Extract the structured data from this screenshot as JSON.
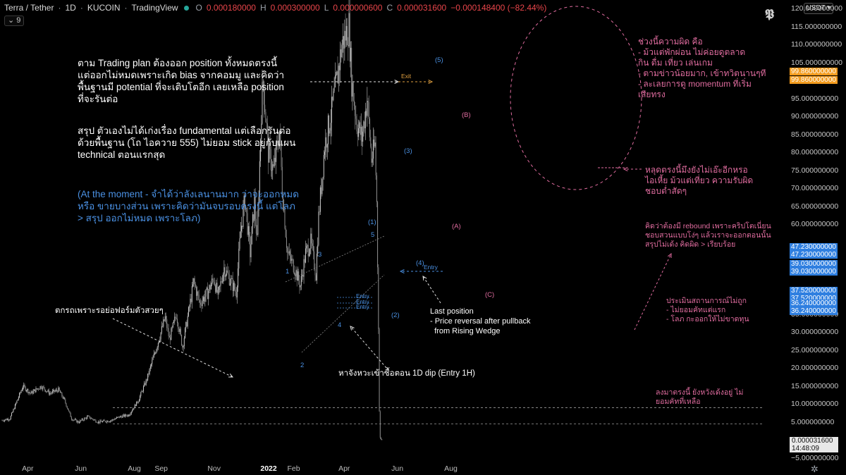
{
  "header": {
    "symbol": "Terra / Tether",
    "interval": "1D",
    "exchange": "KUCOIN",
    "source": "TradingView",
    "open_label": "O",
    "open": "0.000180000",
    "high_label": "H",
    "high": "0.000300000",
    "low_label": "L",
    "low": "0.000000600",
    "close_label": "C",
    "close": "0.000031600",
    "change": "−0.000148400 (−82.44%)",
    "indicator_count": "9"
  },
  "currency_button": "USDT",
  "brand_mark": "𝕻",
  "colors": {
    "background": "#000000",
    "candle": "#c7c7c7",
    "candle_down": "#8f8f8f",
    "pink_note": "#e06c9f",
    "blue_note": "#4a90e2",
    "exit": "#e0a040",
    "price_tag_blue": "#2f7fe0",
    "price_tag_orange": "#f39c1f"
  },
  "price_tags": [
    {
      "value": "99.860000000",
      "color": "orange"
    },
    {
      "value": "99.860000000",
      "color": "orange"
    },
    {
      "value": "47.230000000",
      "color": "blue"
    },
    {
      "value": "47.230000000",
      "color": "blue"
    },
    {
      "value": "39.030000000",
      "color": "blue"
    },
    {
      "value": "39.030000000",
      "color": "blue"
    },
    {
      "value": "37.520000000",
      "color": "blue"
    },
    {
      "value": "37.520000000",
      "color": "blue"
    },
    {
      "value": "36.240000000",
      "color": "blue"
    },
    {
      "value": "36.240000000",
      "color": "blue"
    }
  ],
  "last_price": {
    "value": "0.000031600",
    "countdown": "14:48:09"
  },
  "notes": {
    "plan": "ตาม Trading plan ต้องออก position ทั้งหมดตรงนี้\nแต่ออกไม่หมดเพราะเกิด bias จากคอมมู และคิดว่า\nพื้นฐานมี potential ที่จะเติบโตอีก เลยเหลือ position\nที่จะรันต่อ",
    "summary": "สรุป ตัวเองไม่ได้เก่งเรื่อง fundamental แต่เลือกรันต่อ\nด้วยพื้นฐาน (โถ ไอควาย 555) ไม่ยอม stick อยู่กับแผน\ntechnical ตอนแรกสุด",
    "moment": "(At the moment - จำได้ว่าลังเลนานมาก ว่าจะออกหมด\nหรือ ขายบางส่วน เพราะคิดว่ามันจบรอบตรงนี้ แต่โลภ\n> สรุป ออกไม่หมด เพราะโลภ)",
    "fail": "ตกรถเพราะรอย่อฟอร์มตัวสวยๆ",
    "dip": "หาจังหวะเข้าซื้อตอน 1D dip (Entry 1H)",
    "last_position": "Last position\n- Price reversal after pullback\n  from Rising Wedge",
    "mistake": "ช่วงนี้ความผิด คือ\n- ม้วแต่พักผ่อน ไม่ค่อยดูตลาด\nกิน ดื่ม เที่ยว เล่นเกม\n- ตามข่าวน้อยมาก, เข้าทวิตนานๆที\n- ละเลยการดู momentum ที่เริ่ม\nเสียทรง",
    "drop": "หลุดตรงนี้มึงยังไม่เอ๊ะอีกหรอ\nไอเหี้ย ม้วแต่เที่ยว ความรับผิด\nชอบต่ำสัดๆ",
    "rebound": "คิดว่าต้องมี rebound เพราะคริปโตเนี่ยน\nชอบสวนแบบโง่ๆ แล้วเราจะออกตอนนั้น\nสรุปไม่เด้ง คิดผิด > เรียบร้อย",
    "assess": "ประเมินสถานการณ์ไม่ถูก\n- ไม่ยอมคัทแต่แรก\n- โลภ กะออกให้ไม่ขาดทุน",
    "stuck": "ลงมาตรงนี้ ยังหวังเด้งอยู่ ไม่\nยอมคัทที่เหลือ",
    "exit": "Exit",
    "entry": "Entry"
  },
  "waves": {
    "w1": "1",
    "w2": "2",
    "w3": "3",
    "w4": "4",
    "w5": "5",
    "big1": "(1)",
    "big2": "(2)",
    "big3": "(3)",
    "big4": "(4)",
    "big5": "(5)",
    "A": "(A)",
    "B": "(B)",
    "C": "(C)"
  },
  "chart_data": {
    "type": "candlestick",
    "y_scale": "linear",
    "ylim": [
      -5,
      120
    ],
    "yticks": [
      "120.000000000",
      "115.000000000",
      "110.000000000",
      "105.000000000",
      "95.000000000",
      "90.000000000",
      "85.000000000",
      "80.000000000",
      "75.000000000",
      "70.000000000",
      "65.000000000",
      "60.000000000",
      "35.000000000",
      "30.000000000",
      "25.000000000",
      "20.000000000",
      "15.000000000",
      "10.000000000",
      "5.000000000",
      "−5.000000000"
    ],
    "ytick_values": [
      120,
      115,
      110,
      105,
      95,
      90,
      85,
      80,
      75,
      70,
      65,
      60,
      35,
      30,
      25,
      20,
      15,
      10,
      5,
      -5
    ],
    "xticks": [
      "Apr",
      "Jun",
      "Aug",
      "Sep",
      "Nov",
      "2022",
      "Feb",
      "Apr",
      "Jun",
      "Aug"
    ],
    "xtick_dates": [
      "2021-04-01",
      "2021-06-01",
      "2021-08-01",
      "2021-09-01",
      "2021-11-01",
      "2022-01-01",
      "2022-02-01",
      "2022-04-01",
      "2022-06-01",
      "2022-08-01"
    ],
    "start_date": "2021-03-01",
    "grid": false,
    "path": [
      [
        "2021-03-01",
        5.5
      ],
      [
        "2021-03-10",
        6
      ],
      [
        "2021-03-20",
        12
      ],
      [
        "2021-03-25",
        15
      ],
      [
        "2021-04-03",
        13
      ],
      [
        "2021-04-15",
        15
      ],
      [
        "2021-04-25",
        13
      ],
      [
        "2021-05-05",
        14
      ],
      [
        "2021-05-12",
        11
      ],
      [
        "2021-05-20",
        6
      ],
      [
        "2021-05-28",
        5
      ],
      [
        "2021-06-08",
        6.5
      ],
      [
        "2021-06-20",
        5
      ],
      [
        "2021-07-05",
        5.5
      ],
      [
        "2021-07-15",
        6.5
      ],
      [
        "2021-07-25",
        7
      ],
      [
        "2021-08-05",
        11
      ],
      [
        "2021-08-15",
        17
      ],
      [
        "2021-08-25",
        25
      ],
      [
        "2021-09-05",
        34
      ],
      [
        "2021-09-10",
        28
      ],
      [
        "2021-09-18",
        35
      ],
      [
        "2021-09-25",
        26
      ],
      [
        "2021-10-03",
        37
      ],
      [
        "2021-10-08",
        44
      ],
      [
        "2021-10-15",
        38
      ],
      [
        "2021-10-24",
        41
      ],
      [
        "2021-10-31",
        45
      ],
      [
        "2021-11-05",
        40
      ],
      [
        "2021-11-12",
        48
      ],
      [
        "2021-11-20",
        44
      ],
      [
        "2021-11-26",
        41
      ],
      [
        "2021-12-01",
        58
      ],
      [
        "2021-12-06",
        67
      ],
      [
        "2021-12-12",
        52
      ],
      [
        "2021-12-17",
        66
      ],
      [
        "2021-12-20",
        55
      ],
      [
        "2021-12-25",
        92
      ],
      [
        "2021-12-27",
        100
      ],
      [
        "2022-01-02",
        80
      ],
      [
        "2022-01-08",
        75
      ],
      [
        "2022-01-15",
        86
      ],
      [
        "2022-01-18",
        70
      ],
      [
        "2022-01-24",
        52
      ],
      [
        "2022-02-01",
        48
      ],
      [
        "2022-02-08",
        43
      ],
      [
        "2022-02-14",
        52
      ],
      [
        "2022-02-20",
        55
      ],
      [
        "2022-02-26",
        46
      ],
      [
        "2022-03-01",
        62
      ],
      [
        "2022-03-08",
        82
      ],
      [
        "2022-03-15",
        90
      ],
      [
        "2022-03-22",
        100
      ],
      [
        "2022-03-28",
        110
      ],
      [
        "2022-04-05",
        115
      ],
      [
        "2022-04-08",
        100
      ],
      [
        "2022-04-14",
        88
      ],
      [
        "2022-04-20",
        84
      ],
      [
        "2022-04-26",
        95
      ],
      [
        "2022-05-01",
        78
      ],
      [
        "2022-05-05",
        82
      ],
      [
        "2022-05-07",
        66
      ],
      [
        "2022-05-09",
        32
      ],
      [
        "2022-05-10",
        8
      ],
      [
        "2022-05-11",
        0.5
      ],
      [
        "2022-05-13",
        3.16e-05
      ]
    ],
    "horizontal_lines": [
      4.5,
      9
    ],
    "annotations": [
      "Exit",
      "Entry",
      "(A)",
      "(B)",
      "(C)",
      "(1)",
      "(2)",
      "(3)",
      "(4)",
      "(5)"
    ]
  }
}
